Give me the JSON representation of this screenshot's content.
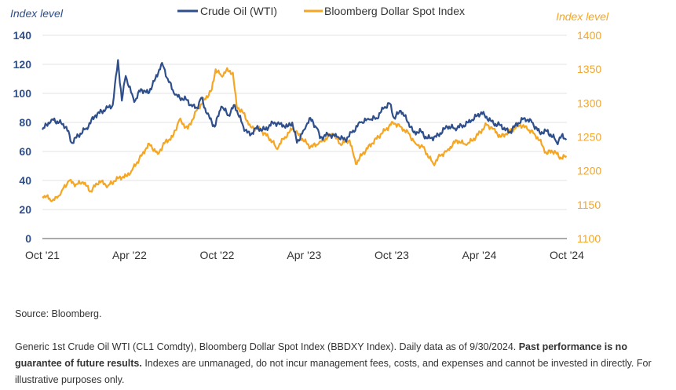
{
  "chart_data": {
    "type": "line",
    "y_left_label": "Index level",
    "y_right_label": "Index level",
    "y_left_range": [
      0,
      140
    ],
    "y_left_ticks": [
      "0",
      "20",
      "40",
      "60",
      "80",
      "100",
      "120",
      "140"
    ],
    "y_right_range": [
      1100,
      1400
    ],
    "y_right_ticks": [
      "1100",
      "1150",
      "1200",
      "1250",
      "1300",
      "1350",
      "1400"
    ],
    "x_range": [
      "2021-10-01",
      "2024-10-01"
    ],
    "x_ticks": [
      {
        "label": "Oct '21",
        "date": "2021-10-01"
      },
      {
        "label": "Apr '22",
        "date": "2022-04-01"
      },
      {
        "label": "Oct '22",
        "date": "2022-10-01"
      },
      {
        "label": "Apr '23",
        "date": "2023-04-01"
      },
      {
        "label": "Oct '23",
        "date": "2023-10-01"
      },
      {
        "label": "Apr '24",
        "date": "2024-04-01"
      },
      {
        "label": "Oct '24",
        "date": "2024-10-01"
      }
    ],
    "grid": "horizontal",
    "legend_position": "top-center",
    "series": [
      {
        "name": "Crude Oil (WTI)",
        "axis": "left",
        "color": "#2e4f8c",
        "points": [
          [
            "2021-10-01",
            75
          ],
          [
            "2021-10-20",
            82
          ],
          [
            "2021-11-05",
            80
          ],
          [
            "2021-11-20",
            77
          ],
          [
            "2021-12-01",
            66
          ],
          [
            "2021-12-15",
            71
          ],
          [
            "2022-01-01",
            76
          ],
          [
            "2022-01-20",
            85
          ],
          [
            "2022-02-10",
            89
          ],
          [
            "2022-02-25",
            92
          ],
          [
            "2022-03-08",
            123
          ],
          [
            "2022-03-16",
            95
          ],
          [
            "2022-03-24",
            112
          ],
          [
            "2022-04-11",
            94
          ],
          [
            "2022-04-25",
            103
          ],
          [
            "2022-05-10",
            100
          ],
          [
            "2022-05-25",
            110
          ],
          [
            "2022-06-08",
            121
          ],
          [
            "2022-06-20",
            110
          ],
          [
            "2022-07-05",
            99
          ],
          [
            "2022-07-15",
            97
          ],
          [
            "2022-07-28",
            96
          ],
          [
            "2022-08-10",
            91
          ],
          [
            "2022-08-20",
            90
          ],
          [
            "2022-08-29",
            97
          ],
          [
            "2022-09-10",
            86
          ],
          [
            "2022-09-26",
            77
          ],
          [
            "2022-10-10",
            91
          ],
          [
            "2022-10-25",
            85
          ],
          [
            "2022-11-07",
            92
          ],
          [
            "2022-11-25",
            77
          ],
          [
            "2022-12-09",
            71
          ],
          [
            "2022-12-20",
            76
          ],
          [
            "2023-01-10",
            75
          ],
          [
            "2023-01-25",
            80
          ],
          [
            "2023-02-10",
            79
          ],
          [
            "2023-02-25",
            77
          ],
          [
            "2023-03-07",
            80
          ],
          [
            "2023-03-17",
            66
          ],
          [
            "2023-04-01",
            75
          ],
          [
            "2023-04-12",
            83
          ],
          [
            "2023-04-28",
            76
          ],
          [
            "2023-05-04",
            69
          ],
          [
            "2023-05-20",
            72
          ],
          [
            "2023-06-10",
            70
          ],
          [
            "2023-06-26",
            68
          ],
          [
            "2023-07-10",
            73
          ],
          [
            "2023-07-28",
            80
          ],
          [
            "2023-08-15",
            82
          ],
          [
            "2023-08-30",
            83
          ],
          [
            "2023-09-15",
            90
          ],
          [
            "2023-09-27",
            93
          ],
          [
            "2023-10-06",
            83
          ],
          [
            "2023-10-20",
            88
          ],
          [
            "2023-11-05",
            80
          ],
          [
            "2023-11-16",
            73
          ],
          [
            "2023-12-01",
            74
          ],
          [
            "2023-12-13",
            69
          ],
          [
            "2024-01-02",
            70
          ],
          [
            "2024-01-25",
            77
          ],
          [
            "2024-02-10",
            76
          ],
          [
            "2024-02-28",
            78
          ],
          [
            "2024-03-15",
            81
          ],
          [
            "2024-04-05",
            87
          ],
          [
            "2024-04-12",
            85
          ],
          [
            "2024-05-01",
            79
          ],
          [
            "2024-05-15",
            78
          ],
          [
            "2024-06-03",
            73
          ],
          [
            "2024-06-15",
            78
          ],
          [
            "2024-07-05",
            83
          ],
          [
            "2024-07-20",
            80
          ],
          [
            "2024-08-05",
            73
          ],
          [
            "2024-08-20",
            74
          ],
          [
            "2024-09-05",
            69
          ],
          [
            "2024-09-10",
            66
          ],
          [
            "2024-09-20",
            71
          ],
          [
            "2024-09-30",
            68
          ]
        ]
      },
      {
        "name": "Bloomberg Dollar Spot Index",
        "axis": "right",
        "color": "#f5a623",
        "points": [
          [
            "2021-10-01",
            1162
          ],
          [
            "2021-10-10",
            1163
          ],
          [
            "2021-10-20",
            1155
          ],
          [
            "2021-11-01",
            1160
          ],
          [
            "2021-11-10",
            1170
          ],
          [
            "2021-11-25",
            1185
          ],
          [
            "2021-12-10",
            1180
          ],
          [
            "2021-12-25",
            1183
          ],
          [
            "2022-01-10",
            1170
          ],
          [
            "2022-01-28",
            1185
          ],
          [
            "2022-02-15",
            1178
          ],
          [
            "2022-03-01",
            1185
          ],
          [
            "2022-03-10",
            1190
          ],
          [
            "2022-03-25",
            1192
          ],
          [
            "2022-04-05",
            1200
          ],
          [
            "2022-04-15",
            1210
          ],
          [
            "2022-04-28",
            1225
          ],
          [
            "2022-05-12",
            1240
          ],
          [
            "2022-05-30",
            1225
          ],
          [
            "2022-06-15",
            1243
          ],
          [
            "2022-06-30",
            1250
          ],
          [
            "2022-07-14",
            1275
          ],
          [
            "2022-08-01",
            1262
          ],
          [
            "2022-08-20",
            1290
          ],
          [
            "2022-09-05",
            1305
          ],
          [
            "2022-09-20",
            1320
          ],
          [
            "2022-09-28",
            1350
          ],
          [
            "2022-10-10",
            1340
          ],
          [
            "2022-10-20",
            1348
          ],
          [
            "2022-11-03",
            1345
          ],
          [
            "2022-11-11",
            1295
          ],
          [
            "2022-11-25",
            1285
          ],
          [
            "2022-12-10",
            1265
          ],
          [
            "2023-01-01",
            1260
          ],
          [
            "2023-01-25",
            1243
          ],
          [
            "2023-02-02",
            1233
          ],
          [
            "2023-02-20",
            1250
          ],
          [
            "2023-03-08",
            1262
          ],
          [
            "2023-03-24",
            1250
          ],
          [
            "2023-04-14",
            1235
          ],
          [
            "2023-05-01",
            1240
          ],
          [
            "2023-05-31",
            1255
          ],
          [
            "2023-06-15",
            1240
          ],
          [
            "2023-07-05",
            1245
          ],
          [
            "2023-07-18",
            1210
          ],
          [
            "2023-08-01",
            1225
          ],
          [
            "2023-08-20",
            1240
          ],
          [
            "2023-09-10",
            1255
          ],
          [
            "2023-09-25",
            1265
          ],
          [
            "2023-10-03",
            1272
          ],
          [
            "2023-10-20",
            1265
          ],
          [
            "2023-11-05",
            1255
          ],
          [
            "2023-11-20",
            1240
          ],
          [
            "2023-12-05",
            1235
          ],
          [
            "2023-12-27",
            1210
          ],
          [
            "2024-01-10",
            1222
          ],
          [
            "2024-01-25",
            1230
          ],
          [
            "2024-02-14",
            1245
          ],
          [
            "2024-03-05",
            1238
          ],
          [
            "2024-03-25",
            1250
          ],
          [
            "2024-04-16",
            1268
          ],
          [
            "2024-05-01",
            1262
          ],
          [
            "2024-05-15",
            1250
          ],
          [
            "2024-05-31",
            1257
          ],
          [
            "2024-06-26",
            1268
          ],
          [
            "2024-07-10",
            1262
          ],
          [
            "2024-07-25",
            1255
          ],
          [
            "2024-08-05",
            1245
          ],
          [
            "2024-08-20",
            1225
          ],
          [
            "2024-08-30",
            1230
          ],
          [
            "2024-09-10",
            1225
          ],
          [
            "2024-09-20",
            1218
          ],
          [
            "2024-09-30",
            1222
          ]
        ]
      }
    ]
  },
  "footer": {
    "source": "Source: Bloomberg.",
    "disclaimer_pre": "Generic 1st Crude Oil WTI (CL1 Comdty), Bloomberg Dollar Spot Index (BBDXY Index). Daily data as of 9/30/2024. ",
    "disclaimer_bold": "Past performance is no guarantee of future results.",
    "disclaimer_post": " Indexes are unmanaged, do not incur management fees, costs, and expenses and cannot be invested in directly. For illustrative purposes only."
  }
}
